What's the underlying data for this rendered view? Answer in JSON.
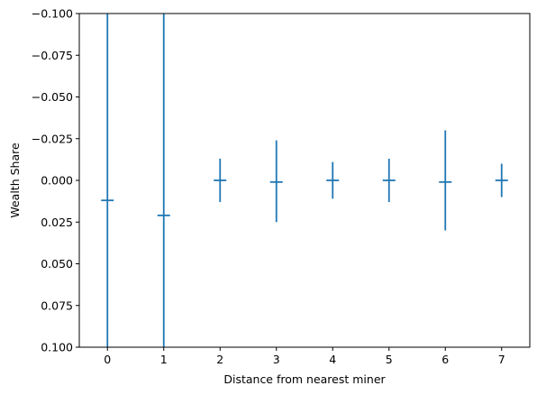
{
  "chart_data": {
    "type": "errorbar",
    "title": "",
    "xlabel": "Distance from nearest miner",
    "ylabel": "Wealth Share",
    "x_ticks": [
      0,
      1,
      2,
      3,
      4,
      5,
      6,
      7
    ],
    "y_ticks": [
      "−0.100",
      "−0.075",
      "−0.050",
      "−0.025",
      "0.000",
      "0.025",
      "0.050",
      "0.075",
      "0.100"
    ],
    "y_tick_values": [
      -0.1,
      -0.075,
      -0.05,
      -0.025,
      0,
      0.025,
      0.05,
      0.075,
      0.1
    ],
    "y_inverted": true,
    "xlim": [
      -0.5,
      7.5
    ],
    "ylim": [
      -0.1,
      0.1
    ],
    "grid": false,
    "color": "#1f77b4",
    "points": [
      {
        "x": 0,
        "y": 0.012,
        "y_low": -0.1,
        "y_high": 0.1
      },
      {
        "x": 1,
        "y": 0.021,
        "y_low": -0.1,
        "y_high": 0.1
      },
      {
        "x": 2,
        "y": 0.0,
        "y_low": -0.013,
        "y_high": 0.013
      },
      {
        "x": 3,
        "y": 0.001,
        "y_low": -0.024,
        "y_high": 0.025
      },
      {
        "x": 4,
        "y": 0.0,
        "y_low": -0.011,
        "y_high": 0.011
      },
      {
        "x": 5,
        "y": 0.0,
        "y_low": -0.013,
        "y_high": 0.013
      },
      {
        "x": 6,
        "y": 0.001,
        "y_low": -0.03,
        "y_high": 0.03
      },
      {
        "x": 7,
        "y": 0.0,
        "y_low": -0.01,
        "y_high": 0.01
      }
    ]
  }
}
